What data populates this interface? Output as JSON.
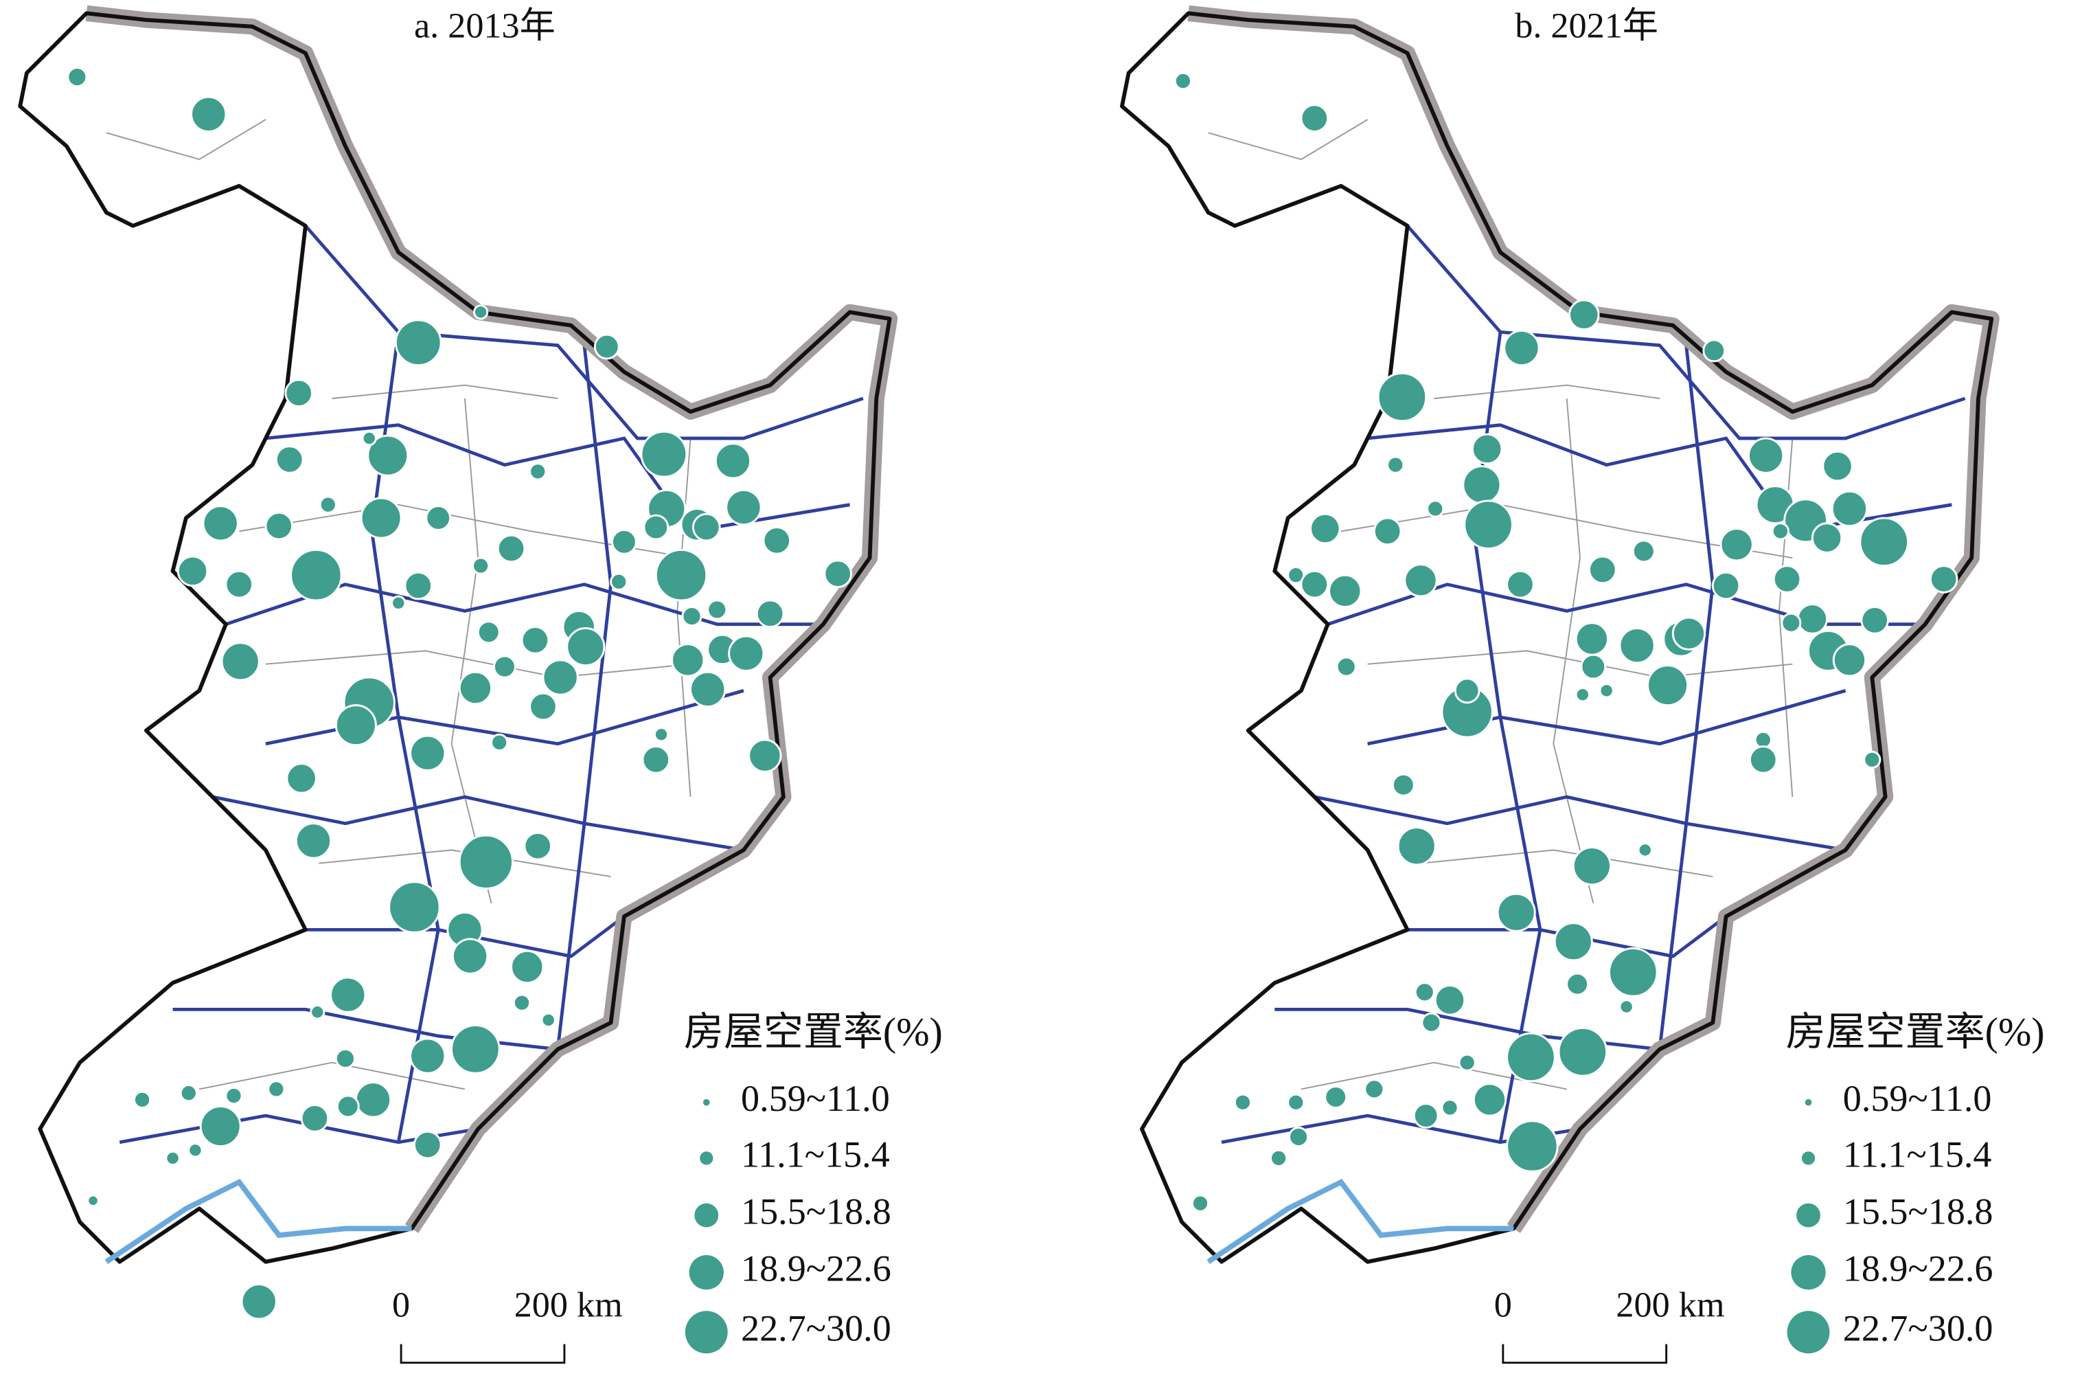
{
  "panels": [
    {
      "title": "a. 2013年",
      "legend": {
        "title": "房屋空置率(%)",
        "classes": [
          "0.59~11.0",
          "11.1~15.4",
          "15.5~18.8",
          "18.9~22.6",
          "22.7~30.0"
        ]
      },
      "scale": {
        "labels": [
          "0",
          "200 km"
        ]
      }
    },
    {
      "title": "b. 2021年",
      "legend": {
        "title": "房屋空置率(%)",
        "classes": [
          "0.59~11.0",
          "11.1~15.4",
          "15.5~18.8",
          "18.9~22.6",
          "22.7~30.0"
        ]
      },
      "scale": {
        "labels": [
          "0",
          "200 km"
        ]
      }
    }
  ]
}
